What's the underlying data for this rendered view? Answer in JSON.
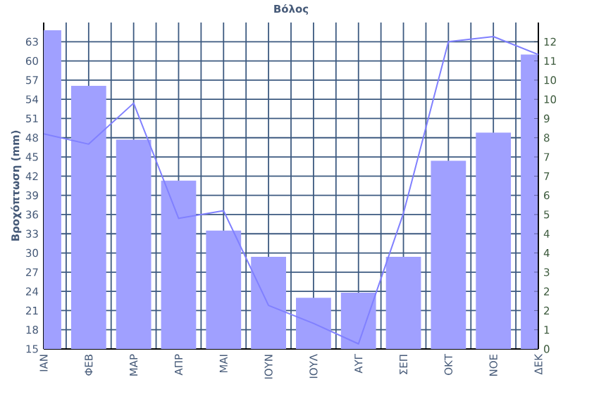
{
  "chart_data": {
    "type": "bar",
    "title": "Βόλος",
    "ylabel": "Βροχόπτωση (mm)",
    "categories": [
      "ΙΑΝ",
      "ΦΕΒ",
      "ΜΑΡ",
      "ΑΠΡ",
      "ΜΑΙ",
      "ΙΟΥΝ",
      "ΙΟΥΛ",
      "ΑΥΓ",
      "ΣΕΠ",
      "ΟΚΤ",
      "ΝΟΕ",
      "ΔΕΚ"
    ],
    "series": [
      {
        "color": "#a0a0ff",
        "values": [
          64.8,
          56.1,
          47.7,
          41.3,
          33.5,
          29.4,
          23.0,
          23.8,
          29.4,
          44.4,
          48.8,
          61.0
        ]
      },
      {
        "type": "line",
        "axis": "y2",
        "color": "#8080ff",
        "values": [
          8.4,
          8.0,
          9.6,
          5.1,
          5.4,
          1.7,
          1.0,
          0.2,
          5.3,
          12.0,
          12.2,
          11.5
        ]
      }
    ],
    "ylim": [
      15,
      66
    ],
    "yticks": [
      15,
      18,
      21,
      24,
      27,
      30,
      33,
      36,
      39,
      42,
      45,
      48,
      51,
      54,
      57,
      60,
      63
    ],
    "y2lim": [
      0,
      12.75
    ],
    "y2ticks": [
      0,
      {
        "value": 0.75,
        "label": "1"
      },
      {
        "value": 1.5,
        "label": "2"
      },
      {
        "value": 2.25,
        "label": "2"
      },
      3,
      {
        "value": 3.75,
        "label": "4"
      },
      {
        "value": 4.5,
        "label": "4"
      },
      {
        "value": 5.25,
        "label": "5"
      },
      6,
      {
        "value": 6.75,
        "label": "7"
      },
      {
        "value": 7.5,
        "label": "7"
      },
      {
        "value": 8.25,
        "label": "8"
      },
      9,
      {
        "value": 9.75,
        "label": "10"
      },
      {
        "value": 10.5,
        "label": "10"
      },
      {
        "value": 11.25,
        "label": "11"
      },
      12
    ],
    "grid": true
  }
}
